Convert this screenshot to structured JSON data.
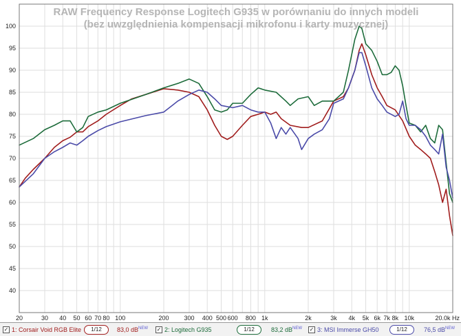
{
  "chart_data": {
    "type": "line",
    "title": [
      "RAW Frequency Response Logitech G935 w porównaniu do innych modeli",
      "(bez uwzględnienia kompensacji mikrofonu i karty muzycznej)"
    ],
    "x_scale": "log",
    "xlim": [
      20,
      20000
    ],
    "ylim": [
      35,
      105
    ],
    "x_ticks": [
      {
        "v": 20,
        "label": "20"
      },
      {
        "v": 30,
        "label": "30"
      },
      {
        "v": 40,
        "label": "40"
      },
      {
        "v": 50,
        "label": "50"
      },
      {
        "v": 60,
        "label": "60"
      },
      {
        "v": 70,
        "label": "70"
      },
      {
        "v": 80,
        "label": "80"
      },
      {
        "v": 100,
        "label": "100"
      },
      {
        "v": 200,
        "label": "200"
      },
      {
        "v": 300,
        "label": "300"
      },
      {
        "v": 400,
        "label": "400"
      },
      {
        "v": 500,
        "label": "500"
      },
      {
        "v": 600,
        "label": "600"
      },
      {
        "v": 800,
        "label": "800"
      },
      {
        "v": 1000,
        "label": "1k"
      },
      {
        "v": 2000,
        "label": "2k"
      },
      {
        "v": 3000,
        "label": "3k"
      },
      {
        "v": 4000,
        "label": "4k"
      },
      {
        "v": 5000,
        "label": "5k"
      },
      {
        "v": 6000,
        "label": "6k"
      },
      {
        "v": 7000,
        "label": "7k"
      },
      {
        "v": 8000,
        "label": "8k"
      },
      {
        "v": 10000,
        "label": "10k"
      },
      {
        "v": 20000,
        "label": "20.0k Hz"
      }
    ],
    "y_ticks": [
      {
        "v": 40,
        "label": "40"
      },
      {
        "v": 45,
        "label": "45"
      },
      {
        "v": 50,
        "label": "50"
      },
      {
        "v": 55,
        "label": "55"
      },
      {
        "v": 60,
        "label": "60"
      },
      {
        "v": 65,
        "label": "65"
      },
      {
        "v": 70,
        "label": "70"
      },
      {
        "v": 75,
        "label": "75"
      },
      {
        "v": 80,
        "label": "80"
      },
      {
        "v": 85,
        "label": "85"
      },
      {
        "v": 90,
        "label": "90"
      },
      {
        "v": 95,
        "label": "95"
      },
      {
        "v": 100,
        "label": "100"
      }
    ],
    "grid": true,
    "series": [
      {
        "name": "1: Corsair Void RGB Elite",
        "color": "#a01c1c",
        "points": [
          [
            20,
            63.5
          ],
          [
            22,
            65.5
          ],
          [
            25,
            67.5
          ],
          [
            30,
            70
          ],
          [
            35,
            72.5
          ],
          [
            40,
            74
          ],
          [
            45,
            74.8
          ],
          [
            50,
            76
          ],
          [
            55,
            76
          ],
          [
            60,
            77.2
          ],
          [
            70,
            78.5
          ],
          [
            80,
            80
          ],
          [
            100,
            82
          ],
          [
            120,
            83.5
          ],
          [
            150,
            84.5
          ],
          [
            200,
            85.8
          ],
          [
            250,
            85.5
          ],
          [
            300,
            85
          ],
          [
            350,
            84
          ],
          [
            400,
            81
          ],
          [
            450,
            77.5
          ],
          [
            500,
            75
          ],
          [
            550,
            74.3
          ],
          [
            600,
            75
          ],
          [
            700,
            77.5
          ],
          [
            800,
            79.5
          ],
          [
            900,
            80
          ],
          [
            1000,
            80.5
          ],
          [
            1100,
            80
          ],
          [
            1200,
            80.5
          ],
          [
            1300,
            79
          ],
          [
            1500,
            77.5
          ],
          [
            1800,
            77
          ],
          [
            2000,
            77
          ],
          [
            2500,
            78.5
          ],
          [
            3000,
            83
          ],
          [
            3500,
            84
          ],
          [
            3800,
            86
          ],
          [
            4200,
            90
          ],
          [
            4500,
            94.5
          ],
          [
            4700,
            96
          ],
          [
            5000,
            93.5
          ],
          [
            5500,
            89
          ],
          [
            6000,
            86
          ],
          [
            6500,
            84
          ],
          [
            7000,
            82
          ],
          [
            8000,
            81
          ],
          [
            9000,
            78.5
          ],
          [
            10000,
            75
          ],
          [
            11000,
            73
          ],
          [
            12000,
            72
          ],
          [
            13000,
            71
          ],
          [
            14000,
            70
          ],
          [
            15000,
            67
          ],
          [
            16000,
            64
          ],
          [
            17000,
            60
          ],
          [
            18000,
            63
          ],
          [
            19000,
            57
          ],
          [
            20000,
            52.5
          ]
        ]
      },
      {
        "name": "2: Logitech G935",
        "color": "#1c6b3a",
        "points": [
          [
            20,
            73
          ],
          [
            25,
            74.5
          ],
          [
            30,
            76.5
          ],
          [
            35,
            77.5
          ],
          [
            40,
            78.5
          ],
          [
            45,
            78.5
          ],
          [
            50,
            76
          ],
          [
            55,
            77
          ],
          [
            60,
            79.5
          ],
          [
            70,
            80.5
          ],
          [
            80,
            81
          ],
          [
            100,
            82.5
          ],
          [
            150,
            84.5
          ],
          [
            200,
            86
          ],
          [
            250,
            87
          ],
          [
            300,
            88
          ],
          [
            350,
            87
          ],
          [
            400,
            84
          ],
          [
            450,
            81
          ],
          [
            500,
            80.5
          ],
          [
            550,
            81
          ],
          [
            600,
            82.5
          ],
          [
            700,
            82.5
          ],
          [
            800,
            84.5
          ],
          [
            900,
            86
          ],
          [
            1000,
            85.5
          ],
          [
            1200,
            85
          ],
          [
            1400,
            83
          ],
          [
            1500,
            82
          ],
          [
            1700,
            83.5
          ],
          [
            2000,
            84
          ],
          [
            2200,
            82
          ],
          [
            2500,
            83
          ],
          [
            3000,
            83
          ],
          [
            3500,
            85
          ],
          [
            3800,
            90
          ],
          [
            4200,
            97
          ],
          [
            4500,
            100
          ],
          [
            4700,
            99.5
          ],
          [
            5000,
            96
          ],
          [
            5500,
            94.5
          ],
          [
            6000,
            92
          ],
          [
            6500,
            89
          ],
          [
            7000,
            89
          ],
          [
            7500,
            89.5
          ],
          [
            8000,
            91
          ],
          [
            8500,
            90
          ],
          [
            9000,
            86.5
          ],
          [
            9500,
            82
          ],
          [
            10000,
            78
          ],
          [
            11000,
            77.5
          ],
          [
            12000,
            76
          ],
          [
            13000,
            77.5
          ],
          [
            14000,
            74.5
          ],
          [
            15000,
            73.5
          ],
          [
            16000,
            77.5
          ],
          [
            17000,
            76.5
          ],
          [
            18000,
            69
          ],
          [
            19000,
            62
          ],
          [
            20000,
            60
          ]
        ]
      },
      {
        "name": "3: MSI Immerse GH50",
        "color": "#4a4aa8",
        "points": [
          [
            20,
            63.5
          ],
          [
            25,
            66.5
          ],
          [
            30,
            70
          ],
          [
            35,
            71.5
          ],
          [
            40,
            72.5
          ],
          [
            45,
            73.5
          ],
          [
            50,
            73
          ],
          [
            55,
            74
          ],
          [
            60,
            75
          ],
          [
            70,
            76.3
          ],
          [
            80,
            77.2
          ],
          [
            100,
            78.3
          ],
          [
            150,
            79.7
          ],
          [
            200,
            80.5
          ],
          [
            250,
            83
          ],
          [
            300,
            84.5
          ],
          [
            350,
            85.5
          ],
          [
            400,
            85
          ],
          [
            450,
            83.5
          ],
          [
            500,
            82
          ],
          [
            600,
            81.5
          ],
          [
            700,
            82
          ],
          [
            800,
            81
          ],
          [
            900,
            80.5
          ],
          [
            1000,
            80.5
          ],
          [
            1100,
            78
          ],
          [
            1200,
            74.5
          ],
          [
            1300,
            77
          ],
          [
            1400,
            75.5
          ],
          [
            1500,
            77
          ],
          [
            1700,
            74.5
          ],
          [
            1800,
            72
          ],
          [
            2000,
            74.5
          ],
          [
            2200,
            75.5
          ],
          [
            2500,
            76.5
          ],
          [
            2800,
            79
          ],
          [
            3000,
            82.5
          ],
          [
            3500,
            83.5
          ],
          [
            3800,
            86
          ],
          [
            4200,
            90
          ],
          [
            4500,
            94
          ],
          [
            4700,
            94
          ],
          [
            5000,
            91
          ],
          [
            5500,
            86
          ],
          [
            6000,
            83.5
          ],
          [
            6500,
            82
          ],
          [
            7000,
            80.5
          ],
          [
            8000,
            79.5
          ],
          [
            8500,
            80
          ],
          [
            9000,
            83
          ],
          [
            9500,
            79
          ],
          [
            10000,
            77.5
          ],
          [
            11000,
            77.5
          ],
          [
            12000,
            76.5
          ],
          [
            13000,
            75
          ],
          [
            14000,
            73
          ],
          [
            15000,
            72
          ],
          [
            16000,
            71
          ],
          [
            17000,
            75.5
          ],
          [
            18000,
            68
          ],
          [
            19000,
            65
          ],
          [
            20000,
            61
          ]
        ]
      }
    ]
  },
  "legend": [
    {
      "check": "✓",
      "name": "1: Corsair Void RGB Elite",
      "smooth": "1/12",
      "db": "83,0 dB",
      "new": "NEW",
      "color": "#a01c1c"
    },
    {
      "check": "✓",
      "name": "2: Logitech G935",
      "smooth": "1/12",
      "db": "83,2 dB",
      "new": "NEW",
      "color": "#1c6b3a"
    },
    {
      "check": "✓",
      "name": "3: MSI Immerse GH50",
      "smooth": "1/12",
      "db": "76,5 dB",
      "new": "NEW",
      "color": "#4a4aa8"
    }
  ]
}
